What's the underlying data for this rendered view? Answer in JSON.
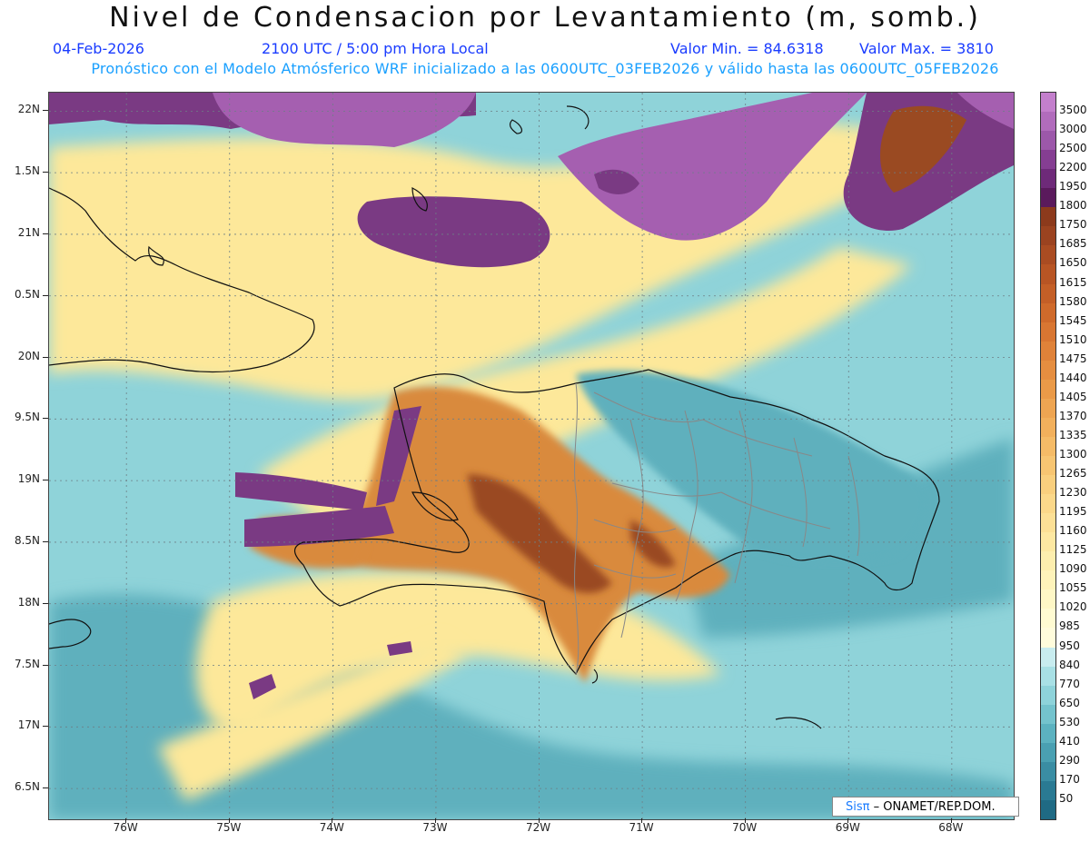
{
  "title": "Nivel de Condensacion por Levantamiento (m, somb.)",
  "date": "04-Feb-2026",
  "time": "2100 UTC / 5:00 pm Hora Local",
  "min_label": "Valor Min. = 84.6318",
  "max_label": "Valor Max. = 3810",
  "subtitle": "Pronóstico con el Modelo Atmósferico WRF inicializado a las 0600UTC_03FEB2026 y válido hasta las  0600UTC_05FEB2026",
  "credit": {
    "logo": "Sisπ",
    "text": "– ONAMET/REP.DOM."
  },
  "map": {
    "lon_range": [
      -76.75,
      -67.4
    ],
    "lat_range": [
      16.25,
      22.15
    ],
    "lat_labels": [
      "22N",
      "1.5N",
      "21N",
      "0.5N",
      "20N",
      "9.5N",
      "19N",
      "8.5N",
      "18N",
      "7.5N",
      "17N",
      "6.5N"
    ],
    "lat_values": [
      22,
      21.5,
      21,
      20.5,
      20,
      19.5,
      19,
      18.5,
      18,
      17.5,
      17,
      16.5
    ],
    "lon_labels": [
      "76W",
      "75W",
      "74W",
      "73W",
      "72W",
      "71W",
      "70W",
      "69W",
      "68W"
    ],
    "lon_values": [
      -76,
      -75,
      -74,
      -73,
      -72,
      -71,
      -70,
      -69,
      -68
    ],
    "colors": {
      "sea": "#8fd3d9",
      "sea_dark": "#5fb0bd",
      "yellow": "#fde89a",
      "orange": "#d98a3c",
      "brown": "#9a4a22",
      "purple": "#7a3a83",
      "violet": "#a55fb0",
      "coast": "#111111",
      "border": "#888888"
    }
  },
  "legend": {
    "labels": [
      "3500",
      "3000",
      "2500",
      "2200",
      "1950",
      "1800",
      "1750",
      "1685",
      "1650",
      "1615",
      "1580",
      "1545",
      "1510",
      "1475",
      "1440",
      "1405",
      "1370",
      "1335",
      "1300",
      "1265",
      "1230",
      "1195",
      "1160",
      "1125",
      "1090",
      "1055",
      "1020",
      "985",
      "950",
      "840",
      "770",
      "650",
      "530",
      "410",
      "290",
      "170",
      "50"
    ],
    "colors": [
      "#c37fcc",
      "#b16cbc",
      "#9c58aa",
      "#853e92",
      "#6e2a79",
      "#5a1a5c",
      "#8c3a1c",
      "#9b4320",
      "#aa4c22",
      "#b85524",
      "#c45f27",
      "#cf6a2b",
      "#d87632",
      "#df8239",
      "#e58e40",
      "#ea9a48",
      "#ee a552",
      "#f2b05c",
      "#f5bb67",
      "#f7c572",
      "#f9cf7e",
      "#fbd88a",
      "#fce096",
      "#fde8a2",
      "#fdeeae",
      "#fef3ba",
      "#fef7c6",
      "#fffbd2",
      "#fffcdc",
      "#c8ecef",
      "#a8e0e5",
      "#8ed3da",
      "#74c3cd",
      "#5cb2c0",
      "#4aa0b2",
      "#3a8da3",
      "#2a7a93"
    ]
  }
}
